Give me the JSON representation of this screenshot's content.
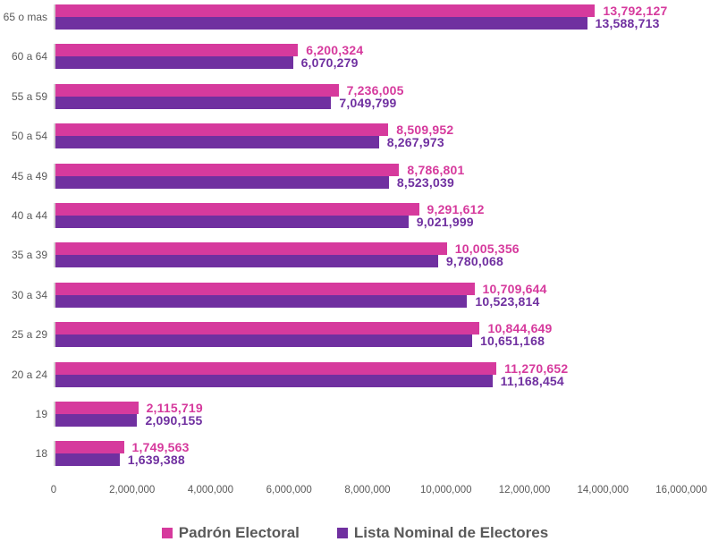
{
  "chart_data": {
    "type": "bar",
    "orientation": "horizontal",
    "title": "",
    "xlabel": "",
    "ylabel": "",
    "xlim": [
      0,
      16000000
    ],
    "x_ticks": [
      "0",
      "2,000,000",
      "4,000,000",
      "6,000,000",
      "8,000,000",
      "10,000,000",
      "12,000,000",
      "14,000,000",
      "16,000,000"
    ],
    "grid": false,
    "legend_position": "bottom",
    "categories": [
      "65 o mas",
      "60 a 64",
      "55 a 59",
      "50 a 54",
      "45 a 49",
      "40 a 44",
      "35 a 39",
      "30 a 34",
      "25 a 29",
      "20 a 24",
      "19",
      "18"
    ],
    "series": [
      {
        "name": "Padrón Electoral",
        "color": "#D63A9D",
        "values": [
          13792127,
          6200324,
          7236005,
          8509952,
          8786801,
          9291612,
          10005356,
          10709644,
          10844649,
          11270652,
          2115719,
          1749563
        ],
        "labels": [
          "13,792,127",
          "6,200,324",
          "7,236,005",
          "8,509,952",
          "8,786,801",
          "9,291,612",
          "10,005,356",
          "10,709,644",
          "10,844,649",
          "11,270,652",
          "2,115,719",
          "1,749,563"
        ]
      },
      {
        "name": "Lista Nominal de Electores",
        "color": "#7030A0",
        "values": [
          13588713,
          6070279,
          7049799,
          8267973,
          8523039,
          9021999,
          9780068,
          10523814,
          10651168,
          11168454,
          2090155,
          1639388
        ],
        "labels": [
          "13,588,713",
          "6,070,279",
          "7,049,799",
          "8,267,973",
          "8,523,039",
          "9,021,999",
          "9,780,068",
          "10,523,814",
          "10,651,168",
          "11,168,454",
          "2,090,155",
          "1,639,388"
        ]
      }
    ]
  },
  "colors": {
    "axis_line": "#D6D3D3",
    "tick_text": "#595959",
    "legend_text": "#595959",
    "background": "#FFFFFF"
  }
}
